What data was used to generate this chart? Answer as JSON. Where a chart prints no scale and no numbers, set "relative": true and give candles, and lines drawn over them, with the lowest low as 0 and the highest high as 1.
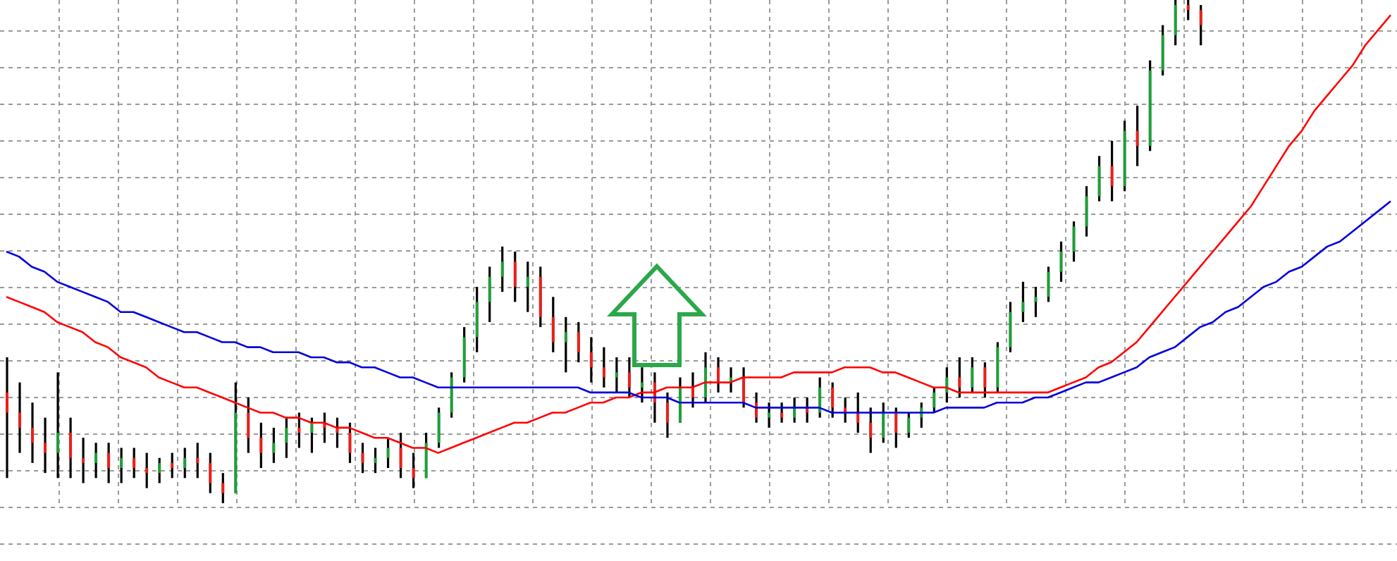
{
  "chart_data": {
    "type": "candlestick",
    "relative": true,
    "grid": true,
    "categories": [
      null,
      null,
      null,
      null,
      null,
      null,
      null,
      null,
      null,
      null,
      null,
      null,
      null,
      null,
      null,
      null,
      null,
      null,
      null,
      null,
      null,
      null,
      null,
      null,
      null,
      null,
      null,
      null,
      null,
      null,
      null,
      null,
      null,
      null,
      null,
      null,
      null,
      null,
      null,
      null,
      null,
      null,
      null,
      null,
      null,
      null,
      null,
      null,
      null,
      null,
      null,
      null,
      null,
      null,
      null,
      null,
      null,
      null,
      null,
      null,
      null,
      null,
      null,
      null,
      null,
      null,
      null,
      null,
      null,
      null,
      null,
      null,
      null,
      null,
      null,
      null,
      null,
      null,
      null,
      null,
      null,
      null,
      null,
      null,
      null,
      null,
      null,
      null,
      null,
      null,
      null,
      null,
      null,
      null,
      null,
      null,
      null,
      null,
      null,
      null,
      null,
      null,
      null,
      null,
      null,
      null,
      null,
      null,
      null,
      null
    ],
    "ohlc": [
      [
        0.22,
        0.29,
        0.05,
        0.18
      ],
      [
        0.18,
        0.24,
        0.1,
        0.15
      ],
      [
        0.15,
        0.2,
        0.08,
        0.12
      ],
      [
        0.12,
        0.17,
        0.06,
        0.1
      ],
      [
        0.1,
        0.26,
        0.05,
        0.14
      ],
      [
        0.14,
        0.17,
        0.05,
        0.09
      ],
      [
        0.09,
        0.13,
        0.04,
        0.08
      ],
      [
        0.08,
        0.12,
        0.05,
        0.1
      ],
      [
        0.1,
        0.12,
        0.04,
        0.07
      ],
      [
        0.07,
        0.11,
        0.04,
        0.09
      ],
      [
        0.09,
        0.11,
        0.05,
        0.07
      ],
      [
        0.07,
        0.1,
        0.03,
        0.06
      ],
      [
        0.06,
        0.09,
        0.04,
        0.08
      ],
      [
        0.08,
        0.1,
        0.05,
        0.07
      ],
      [
        0.07,
        0.11,
        0.05,
        0.09
      ],
      [
        0.09,
        0.12,
        0.05,
        0.08
      ],
      [
        0.08,
        0.1,
        0.02,
        0.04
      ],
      [
        0.04,
        0.06,
        0,
        0.02
      ],
      [
        0.02,
        0.24,
        0.02,
        0.18
      ],
      [
        0.18,
        0.21,
        0.1,
        0.13
      ],
      [
        0.13,
        0.16,
        0.07,
        0.1
      ],
      [
        0.1,
        0.15,
        0.08,
        0.12
      ],
      [
        0.12,
        0.17,
        0.09,
        0.15
      ],
      [
        0.15,
        0.18,
        0.11,
        0.14
      ],
      [
        0.14,
        0.17,
        0.1,
        0.16
      ],
      [
        0.16,
        0.18,
        0.12,
        0.15
      ],
      [
        0.15,
        0.17,
        0.11,
        0.14
      ],
      [
        0.14,
        0.16,
        0.08,
        0.1
      ],
      [
        0.1,
        0.12,
        0.06,
        0.08
      ],
      [
        0.08,
        0.11,
        0.06,
        0.09
      ],
      [
        0.09,
        0.13,
        0.07,
        0.11
      ],
      [
        0.11,
        0.14,
        0.05,
        0.07
      ],
      [
        0.07,
        0.1,
        0.03,
        0.05
      ],
      [
        0.05,
        0.14,
        0.05,
        0.12
      ],
      [
        0.12,
        0.19,
        0.11,
        0.18
      ],
      [
        0.18,
        0.26,
        0.17,
        0.25
      ],
      [
        0.25,
        0.35,
        0.24,
        0.33
      ],
      [
        0.33,
        0.43,
        0.3,
        0.4
      ],
      [
        0.4,
        0.47,
        0.36,
        0.45
      ],
      [
        0.45,
        0.51,
        0.42,
        0.48
      ],
      [
        0.48,
        0.5,
        0.4,
        0.43
      ],
      [
        0.43,
        0.48,
        0.38,
        0.45
      ],
      [
        0.45,
        0.47,
        0.35,
        0.37
      ],
      [
        0.37,
        0.41,
        0.3,
        0.32
      ],
      [
        0.32,
        0.37,
        0.26,
        0.34
      ],
      [
        0.34,
        0.36,
        0.28,
        0.3
      ],
      [
        0.3,
        0.33,
        0.24,
        0.27
      ],
      [
        0.27,
        0.31,
        0.23,
        0.25
      ],
      [
        0.25,
        0.29,
        0.22,
        0.26
      ],
      [
        0.26,
        0.29,
        0.21,
        0.23
      ],
      [
        0.23,
        0.27,
        0.2,
        0.24
      ],
      [
        0.24,
        0.26,
        0.16,
        0.2
      ],
      [
        0.2,
        0.22,
        0.13,
        0.16
      ],
      [
        0.16,
        0.25,
        0.16,
        0.23
      ],
      [
        0.23,
        0.26,
        0.19,
        0.21
      ],
      [
        0.21,
        0.3,
        0.2,
        0.27
      ],
      [
        0.27,
        0.29,
        0.22,
        0.24
      ],
      [
        0.24,
        0.27,
        0.22,
        0.25
      ],
      [
        0.25,
        0.27,
        0.19,
        0.2
      ],
      [
        0.2,
        0.22,
        0.16,
        0.17
      ],
      [
        0.17,
        0.2,
        0.15,
        0.18
      ],
      [
        0.18,
        0.2,
        0.16,
        0.17
      ],
      [
        0.17,
        0.21,
        0.16,
        0.19
      ],
      [
        0.19,
        0.21,
        0.16,
        0.18
      ],
      [
        0.18,
        0.25,
        0.17,
        0.23
      ],
      [
        0.23,
        0.24,
        0.17,
        0.19
      ],
      [
        0.19,
        0.21,
        0.16,
        0.18
      ],
      [
        0.18,
        0.22,
        0.14,
        0.16
      ],
      [
        0.16,
        0.19,
        0.1,
        0.13
      ],
      [
        0.13,
        0.2,
        0.12,
        0.18
      ],
      [
        0.18,
        0.19,
        0.11,
        0.14
      ],
      [
        0.14,
        0.18,
        0.13,
        0.17
      ],
      [
        0.17,
        0.2,
        0.15,
        0.19
      ],
      [
        0.19,
        0.23,
        0.18,
        0.22
      ],
      [
        0.22,
        0.27,
        0.2,
        0.25
      ],
      [
        0.25,
        0.29,
        0.21,
        0.23
      ],
      [
        0.23,
        0.29,
        0.22,
        0.27
      ],
      [
        0.27,
        0.28,
        0.21,
        0.23
      ],
      [
        0.23,
        0.32,
        0.22,
        0.31
      ],
      [
        0.31,
        0.4,
        0.3,
        0.38
      ],
      [
        0.38,
        0.44,
        0.36,
        0.4
      ],
      [
        0.4,
        0.43,
        0.37,
        0.41
      ],
      [
        0.41,
        0.47,
        0.4,
        0.46
      ],
      [
        0.46,
        0.52,
        0.44,
        0.5
      ],
      [
        0.5,
        0.56,
        0.48,
        0.55
      ],
      [
        0.55,
        0.63,
        0.53,
        0.61
      ],
      [
        0.61,
        0.69,
        0.6,
        0.67
      ],
      [
        0.67,
        0.72,
        0.6,
        0.63
      ],
      [
        0.63,
        0.76,
        0.62,
        0.74
      ],
      [
        0.74,
        0.79,
        0.67,
        0.71
      ],
      [
        0.71,
        0.88,
        0.7,
        0.86
      ],
      [
        0.86,
        0.95,
        0.85,
        0.93
      ],
      [
        0.93,
        1,
        0.91,
        0.99
      ],
      [
        0.99,
        1,
        0.96,
        0.98
      ],
      [
        0.98,
        0.99,
        0.91,
        0.95
      ],
      null,
      null,
      null,
      null,
      null,
      null,
      null,
      null,
      null,
      null,
      null,
      null,
      null,
      null,
      null
    ],
    "colors": [
      "#e8201a",
      "#e8201a",
      "#e8201a",
      "#e8201a",
      "#1f9e3a",
      "#e8201a",
      "#e8201a",
      "#1f9e3a",
      "#e8201a",
      "#1f9e3a",
      "#e8201a",
      "#e8201a",
      "#1f9e3a",
      "#e8201a",
      "#1f9e3a",
      "#e8201a",
      "#e8201a",
      "#e8201a",
      "#1f9e3a",
      "#e8201a",
      "#e8201a",
      "#1f9e3a",
      "#1f9e3a",
      "#e8201a",
      "#1f9e3a",
      "#e8201a",
      "#e8201a",
      "#e8201a",
      "#e8201a",
      "#1f9e3a",
      "#1f9e3a",
      "#e8201a",
      "#e8201a",
      "#1f9e3a",
      "#1f9e3a",
      "#1f9e3a",
      "#1f9e3a",
      "#1f9e3a",
      "#1f9e3a",
      "#1f9e3a",
      "#e8201a",
      "#1f9e3a",
      "#e8201a",
      "#e8201a",
      "#1f9e3a",
      "#e8201a",
      "#e8201a",
      "#e8201a",
      "#1f9e3a",
      "#e8201a",
      "#1f9e3a",
      "#e8201a",
      "#e8201a",
      "#1f9e3a",
      "#e8201a",
      "#1f9e3a",
      "#e8201a",
      "#1f9e3a",
      "#e8201a",
      "#e8201a",
      "#1f9e3a",
      "#e8201a",
      "#1f9e3a",
      "#e8201a",
      "#1f9e3a",
      "#e8201a",
      "#e8201a",
      "#e8201a",
      "#e8201a",
      "#1f9e3a",
      "#e8201a",
      "#1f9e3a",
      "#1f9e3a",
      "#1f9e3a",
      "#1f9e3a",
      "#e8201a",
      "#1f9e3a",
      "#e8201a",
      "#1f9e3a",
      "#1f9e3a",
      "#1f9e3a",
      "#1f9e3a",
      "#1f9e3a",
      "#1f9e3a",
      "#1f9e3a",
      "#1f9e3a",
      "#1f9e3a",
      "#e8201a",
      "#1f9e3a",
      "#e8201a",
      "#1f9e3a",
      "#1f9e3a",
      "#1f9e3a",
      "#e8201a",
      "#e8201a",
      null,
      null,
      null,
      null,
      null,
      null,
      null,
      null,
      null,
      null,
      null,
      null,
      null,
      null,
      null
    ],
    "series": [
      {
        "type": "line",
        "color": "#ff0000",
        "values": [
          0.41,
          0.4,
          0.39,
          0.38,
          0.36,
          0.35,
          0.34,
          0.32,
          0.31,
          0.29,
          0.28,
          0.27,
          0.25,
          0.24,
          0.23,
          0.23,
          0.22,
          0.21,
          0.2,
          0.19,
          0.18,
          0.18,
          0.17,
          0.17,
          0.16,
          0.16,
          0.15,
          0.15,
          0.14,
          0.13,
          0.13,
          0.12,
          0.11,
          0.11,
          0.1,
          0.11,
          0.12,
          0.13,
          0.14,
          0.15,
          0.16,
          0.16,
          0.17,
          0.18,
          0.18,
          0.19,
          0.2,
          0.2,
          0.21,
          0.21,
          0.22,
          0.22,
          0.23,
          0.23,
          0.23,
          0.24,
          0.24,
          0.24,
          0.25,
          0.25,
          0.25,
          0.25,
          0.26,
          0.26,
          0.26,
          0.26,
          0.27,
          0.27,
          0.27,
          0.26,
          0.26,
          0.25,
          0.24,
          0.23,
          0.23,
          0.22,
          0.22,
          0.22,
          0.22,
          0.22,
          0.22,
          0.22,
          0.22,
          0.23,
          0.24,
          0.25,
          0.27,
          0.28,
          0.3,
          0.32,
          0.35,
          0.38,
          0.41,
          0.44,
          0.47,
          0.5,
          0.53,
          0.56,
          0.59,
          0.63,
          0.67,
          0.71,
          0.74,
          0.78,
          0.81,
          0.84,
          0.87,
          0.91,
          0.94,
          0.97
        ]
      },
      {
        "type": "line",
        "color": "#0000dd",
        "values": [
          0.5,
          0.49,
          0.47,
          0.46,
          0.44,
          0.43,
          0.42,
          0.41,
          0.4,
          0.38,
          0.38,
          0.37,
          0.36,
          0.35,
          0.34,
          0.34,
          0.33,
          0.32,
          0.32,
          0.31,
          0.31,
          0.3,
          0.3,
          0.3,
          0.29,
          0.29,
          0.28,
          0.28,
          0.27,
          0.27,
          0.26,
          0.25,
          0.25,
          0.24,
          0.23,
          0.23,
          0.23,
          0.23,
          0.23,
          0.23,
          0.23,
          0.23,
          0.23,
          0.23,
          0.23,
          0.23,
          0.22,
          0.22,
          0.22,
          0.22,
          0.21,
          0.21,
          0.21,
          0.2,
          0.2,
          0.2,
          0.2,
          0.2,
          0.2,
          0.19,
          0.19,
          0.19,
          0.19,
          0.19,
          0.19,
          0.18,
          0.18,
          0.18,
          0.18,
          0.18,
          0.18,
          0.18,
          0.18,
          0.18,
          0.19,
          0.19,
          0.19,
          0.19,
          0.2,
          0.2,
          0.2,
          0.21,
          0.21,
          0.22,
          0.23,
          0.24,
          0.24,
          0.25,
          0.26,
          0.27,
          0.29,
          0.3,
          0.31,
          0.33,
          0.35,
          0.36,
          0.38,
          0.39,
          0.41,
          0.43,
          0.44,
          0.46,
          0.47,
          0.49,
          0.51,
          0.52,
          0.54,
          0.56,
          0.58,
          0.6
        ]
      }
    ]
  }
}
